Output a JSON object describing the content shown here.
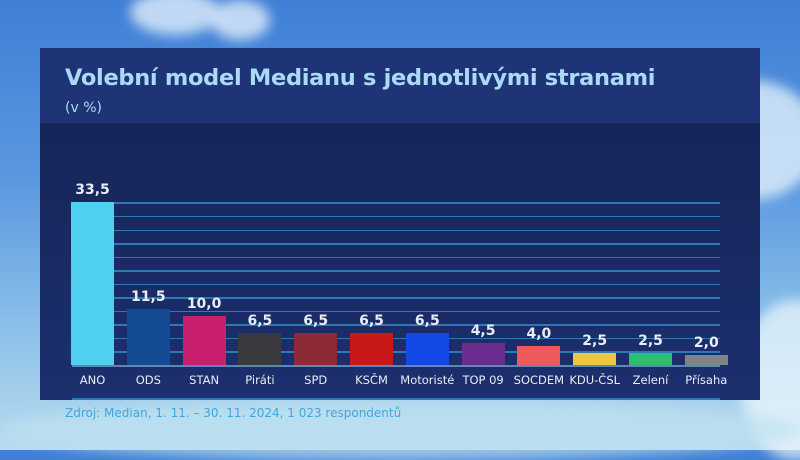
{
  "title": "Volební model Medianu s jednotlivými stranami",
  "subtitle": "(v %)",
  "source": "Zdroj: Median, 1. 11. – 30. 11. 2024, 1 023 respondentů",
  "chart_data": {
    "type": "bar",
    "title": "Volební model Medianu s jednotlivými stranami",
    "subtitle": "(v %)",
    "xlabel": "",
    "ylabel": "v %",
    "ylim": [
      0,
      33.5
    ],
    "grid": true,
    "legend": "none",
    "categories": [
      "ANO",
      "ODS",
      "STAN",
      "Piráti",
      "SPD",
      "KSČM",
      "Motoristé",
      "TOP 09",
      "SOCDEM",
      "KDU-ČSL",
      "Zelení",
      "Přísaha"
    ],
    "values": [
      33.5,
      11.5,
      10.0,
      6.5,
      6.5,
      6.5,
      6.5,
      4.5,
      4.0,
      2.5,
      2.5,
      2.0
    ],
    "labels": [
      "33,5",
      "11,5",
      "10,0",
      "6,5",
      "6,5",
      "6,5",
      "6,5",
      "4,5",
      "4,0",
      "2,5",
      "2,5",
      "2,0"
    ],
    "colors": [
      "#4fd0f0",
      "#134a92",
      "#c8206e",
      "#3a3a3e",
      "#8c2a35",
      "#c81818",
      "#1248e6",
      "#6a2c8e",
      "#ee5a5a",
      "#f0c640",
      "#2cbe6a",
      "#7f8488"
    ],
    "source": "Zdroj: Median, 1. 11. – 30. 11. 2024, 1 023 respondentů"
  },
  "bars": [
    {
      "label": "ANO",
      "value_text": "33,5"
    },
    {
      "label": "ODS",
      "value_text": "11,5"
    },
    {
      "label": "STAN",
      "value_text": "10,0"
    },
    {
      "label": "Piráti",
      "value_text": "6,5"
    },
    {
      "label": "SPD",
      "value_text": "6,5"
    },
    {
      "label": "KSČM",
      "value_text": "6,5"
    },
    {
      "label": "Motoristé",
      "value_text": "6,5"
    },
    {
      "label": "TOP 09",
      "value_text": "4,5"
    },
    {
      "label": "SOCDEM",
      "value_text": "4,0"
    },
    {
      "label": "KDU-ČSL",
      "value_text": "2,5"
    },
    {
      "label": "Zelení",
      "value_text": "2,5"
    },
    {
      "label": "Přísaha",
      "value_text": "2,0"
    }
  ]
}
